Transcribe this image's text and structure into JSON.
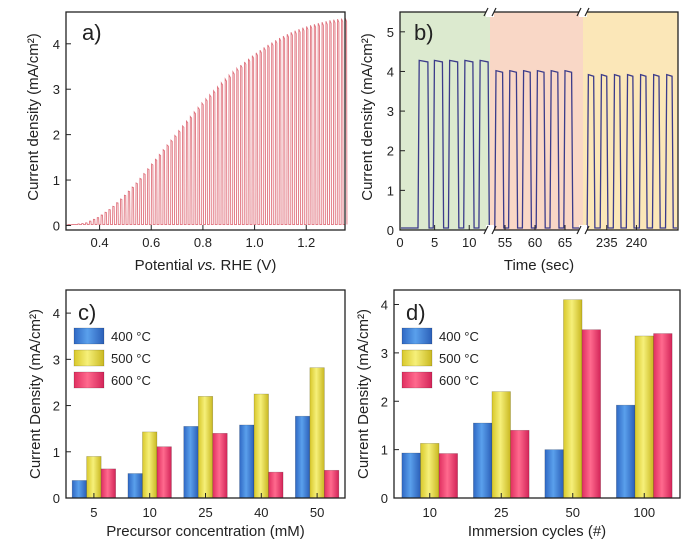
{
  "chart_data": [
    {
      "panel": "a)",
      "type": "line",
      "description_style": "chopped light linear sweep",
      "xlabel_parts": [
        "Potential ",
        "vs.",
        " RHE (V)"
      ],
      "ylabel": "Current density (mA/cm²)",
      "xlim": [
        0.27,
        1.35
      ],
      "ylim": [
        -0.1,
        4.7
      ],
      "xticks": [
        0.4,
        0.6,
        0.8,
        1.0,
        1.2
      ],
      "yticks": [
        0,
        1,
        2,
        3,
        4
      ],
      "envelope": {
        "x": [
          0.27,
          0.35,
          0.4,
          0.45,
          0.5,
          0.55,
          0.6,
          0.65,
          0.7,
          0.75,
          0.8,
          0.85,
          0.9,
          0.95,
          1.0,
          1.05,
          1.1,
          1.15,
          1.2,
          1.25,
          1.3,
          1.35
        ],
        "y": [
          0.0,
          0.05,
          0.18,
          0.38,
          0.65,
          0.95,
          1.3,
          1.65,
          2.0,
          2.35,
          2.68,
          2.98,
          3.27,
          3.52,
          3.75,
          3.95,
          4.12,
          4.26,
          4.37,
          4.45,
          4.52,
          4.56
        ]
      },
      "chop_count": 72,
      "color": "#e0747f"
    },
    {
      "panel": "b)",
      "type": "line",
      "description_style": "chopped light transient, broken x-axis",
      "xlabel": "Time (sec)",
      "ylabel": "Current density (mA/cm²)",
      "ylim": [
        0,
        5.5
      ],
      "yticks": [
        0,
        1,
        2,
        3,
        4,
        5
      ],
      "segments": [
        {
          "xlim": [
            0,
            13
          ],
          "xticks": [
            0,
            5,
            10
          ],
          "on_level": 4.28,
          "pulses": [
            [
              2.6,
              4.2
            ],
            [
              4.8,
              6.3
            ],
            [
              7.0,
              8.5
            ],
            [
              9.2,
              10.7
            ],
            [
              11.4,
              12.9
            ]
          ],
          "background": "#dceacf"
        },
        {
          "xlim": [
            52.5,
            68
          ],
          "xticks": [
            55,
            60,
            65
          ],
          "on_level": 4.02,
          "pulses": [
            [
              53.3,
              54.8
            ],
            [
              55.6,
              57.1
            ],
            [
              57.9,
              59.4
            ],
            [
              60.2,
              61.7
            ],
            [
              62.5,
              64.0
            ],
            [
              64.8,
              66.3
            ]
          ],
          "background": "#f9d7c6"
        },
        {
          "xlim": [
            231,
            247
          ],
          "xticks": [
            235,
            240
          ],
          "on_level": 3.92,
          "pulses": [
            [
              231.7,
              233.0
            ],
            [
              233.9,
              235.2
            ],
            [
              236.1,
              237.4
            ],
            [
              238.3,
              239.6
            ],
            [
              240.5,
              241.8
            ],
            [
              242.7,
              244.0
            ],
            [
              244.9,
              246.2
            ]
          ],
          "background": "#fbe7b8"
        }
      ],
      "color": "#3b3b8a"
    },
    {
      "panel": "c)",
      "type": "bar",
      "xlabel": "Precursor concentration (mM)",
      "ylabel": "Current Density (mA/cm²)",
      "categories": [
        "5",
        "10",
        "25",
        "40",
        "50"
      ],
      "ylim": [
        0,
        4.5
      ],
      "yticks": [
        0,
        1,
        2,
        3,
        4
      ],
      "series": [
        {
          "name": "400 °C",
          "values": [
            0.38,
            0.53,
            1.55,
            1.58,
            1.77
          ],
          "color": "#3f82d6"
        },
        {
          "name": "500 °C",
          "values": [
            0.9,
            1.43,
            2.2,
            2.25,
            2.82
          ],
          "color": "#e8e04a"
        },
        {
          "name": "600 °C",
          "values": [
            0.63,
            1.11,
            1.4,
            0.56,
            0.6
          ],
          "color": "#f0416f"
        }
      ],
      "legend": "top-left"
    },
    {
      "panel": "d)",
      "type": "bar",
      "xlabel": "Immersion cycles (#)",
      "ylabel": "Current Density (mA/cm²)",
      "categories": [
        "10",
        "25",
        "50",
        "100"
      ],
      "ylim": [
        0,
        4.3
      ],
      "yticks": [
        0,
        1,
        2,
        3,
        4
      ],
      "series": [
        {
          "name": "400 °C",
          "values": [
            0.93,
            1.55,
            1.0,
            1.92
          ],
          "color": "#3f82d6"
        },
        {
          "name": "500 °C",
          "values": [
            1.13,
            2.2,
            4.1,
            3.35
          ],
          "color": "#e8e04a"
        },
        {
          "name": "600 °C",
          "values": [
            0.92,
            1.4,
            3.48,
            3.4
          ],
          "color": "#f0416f"
        }
      ],
      "legend": "top-left"
    }
  ]
}
